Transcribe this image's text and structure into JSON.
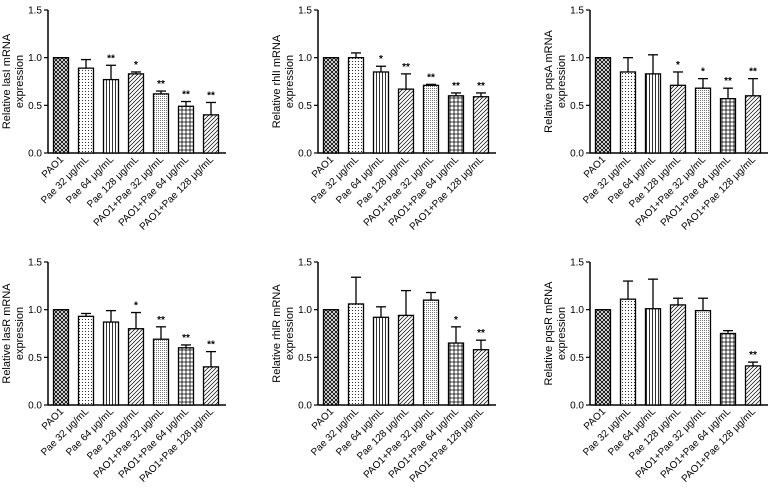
{
  "colors": {
    "ink": "#000000",
    "background": "#ffffff",
    "bar_fill": "#ffffff"
  },
  "chart_data": [
    {
      "type": "bar",
      "ylabel_lines": [
        "Relative lasI mRNA",
        "expression"
      ],
      "ylim": [
        0,
        1.5
      ],
      "yticks": [
        "0.0",
        "0.5",
        "1.0",
        "1.5"
      ],
      "categories": [
        "PAO1",
        "Pae 32 μg/mL",
        "Pae 64 μg/mL",
        "Pae 128 μg/mL",
        "PAO1+Pae 32 μg/mL",
        "PAO1+Pae 64 μg/mL",
        "PAO1+Pae 128 μg/mL"
      ],
      "values": [
        1.0,
        0.89,
        0.77,
        0.83,
        0.62,
        0.49,
        0.4
      ],
      "errors": [
        0.0,
        0.09,
        0.15,
        0.02,
        0.03,
        0.05,
        0.13
      ],
      "significance": [
        "",
        "",
        "**",
        "*",
        "**",
        "**",
        "**"
      ]
    },
    {
      "type": "bar",
      "ylabel_lines": [
        "Relative rhlI mRNA",
        "expression"
      ],
      "ylim": [
        0,
        1.5
      ],
      "yticks": [
        "0.0",
        "0.5",
        "1.0",
        "1.5"
      ],
      "categories": [
        "PAO1",
        "Pae 32 μg/mL",
        "Pae 64 μg/mL",
        "Pae 128 μg/mL",
        "PAO1+Pae 32 μg/mL",
        "PAO1+Pae 64 μg/mL",
        "PAO1+Pae 128 μg/mL"
      ],
      "values": [
        1.0,
        1.0,
        0.85,
        0.67,
        0.71,
        0.6,
        0.59
      ],
      "errors": [
        0.0,
        0.05,
        0.06,
        0.16,
        0.01,
        0.03,
        0.04
      ],
      "significance": [
        "",
        "",
        "*",
        "**",
        "**",
        "**",
        "**"
      ]
    },
    {
      "type": "bar",
      "ylabel_lines": [
        "Relative pqsA mRNA",
        "expression"
      ],
      "ylim": [
        0,
        1.5
      ],
      "yticks": [
        "0.0",
        "0.5",
        "1.0",
        "1.5"
      ],
      "categories": [
        "PAO1",
        "Pae 32 μg/mL",
        "Pae 64 μg/mL",
        "Pae 128 μg/mL",
        "PAO1+Pae 32 μg/mL",
        "PAO1+Pae 64 μg/mL",
        "PAO1+Pae 128 μg/mL"
      ],
      "values": [
        1.0,
        0.85,
        0.83,
        0.71,
        0.68,
        0.57,
        0.6
      ],
      "errors": [
        0.0,
        0.15,
        0.2,
        0.14,
        0.1,
        0.11,
        0.18
      ],
      "significance": [
        "",
        "",
        "",
        "*",
        "*",
        "**",
        "**"
      ]
    },
    {
      "type": "bar",
      "ylabel_lines": [
        "Relative lasR mRNA",
        "expression"
      ],
      "ylim": [
        0,
        1.5
      ],
      "yticks": [
        "0.0",
        "0.5",
        "1.0",
        "1.5"
      ],
      "categories": [
        "PAO1",
        "Pae 32 μg/mL",
        "Pae 64 μg/mL",
        "Pae 128 μg/mL",
        "PAO1+Pae 32 μg/mL",
        "PAO1+Pae 64 μg/mL",
        "PAO1+Pae 128 μg/mL"
      ],
      "values": [
        1.0,
        0.93,
        0.87,
        0.8,
        0.69,
        0.6,
        0.4
      ],
      "errors": [
        0.0,
        0.03,
        0.12,
        0.17,
        0.13,
        0.03,
        0.16
      ],
      "significance": [
        "",
        "",
        "",
        "*",
        "**",
        "**",
        "**"
      ]
    },
    {
      "type": "bar",
      "ylabel_lines": [
        "Relative rhlR mRNA",
        "expression"
      ],
      "ylim": [
        0,
        1.5
      ],
      "yticks": [
        "0.0",
        "0.5",
        "1.0",
        "1.5"
      ],
      "categories": [
        "PAO1",
        "Pae 32 μg/mL",
        "Pae 64 μg/mL",
        "Pae 128 μg/mL",
        "PAO1+Pae 32 μg/mL",
        "PAO1+Pae 64 μg/mL",
        "PAO1+Pae 128 μg/mL"
      ],
      "values": [
        1.0,
        1.06,
        0.92,
        0.94,
        1.1,
        0.65,
        0.58
      ],
      "errors": [
        0.0,
        0.28,
        0.11,
        0.26,
        0.08,
        0.17,
        0.1
      ],
      "significance": [
        "",
        "",
        "",
        "",
        "",
        "*",
        "**"
      ]
    },
    {
      "type": "bar",
      "ylabel_lines": [
        "Relative pqsR mRNA",
        "expression"
      ],
      "ylim": [
        0,
        1.5
      ],
      "yticks": [
        "0.0",
        "0.5",
        "1.0",
        "1.5"
      ],
      "categories": [
        "PAO1",
        "Pae 32 μg/mL",
        "Pae 64 μg/mL",
        "Pae 128 μg/mL",
        "PAO1+Pae 32 μg/mL",
        "PAO1+Pae 64 μg/mL",
        "PAO1+Pae 128 μg/mL"
      ],
      "values": [
        1.0,
        1.11,
        1.01,
        1.05,
        0.99,
        0.75,
        0.41
      ],
      "errors": [
        0.0,
        0.19,
        0.31,
        0.07,
        0.13,
        0.03,
        0.04
      ],
      "significance": [
        "",
        "",
        "",
        "",
        "",
        "",
        "**"
      ]
    }
  ]
}
